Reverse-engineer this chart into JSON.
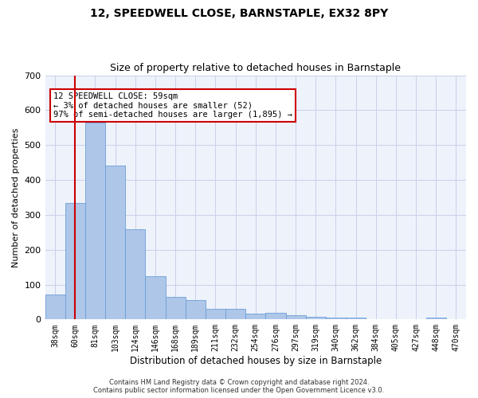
{
  "title": "12, SPEEDWELL CLOSE, BARNSTAPLE, EX32 8PY",
  "subtitle": "Size of property relative to detached houses in Barnstaple",
  "xlabel": "Distribution of detached houses by size in Barnstaple",
  "ylabel": "Number of detached properties",
  "categories": [
    "38sqm",
    "60sqm",
    "81sqm",
    "103sqm",
    "124sqm",
    "146sqm",
    "168sqm",
    "189sqm",
    "211sqm",
    "232sqm",
    "254sqm",
    "276sqm",
    "297sqm",
    "319sqm",
    "340sqm",
    "362sqm",
    "384sqm",
    "405sqm",
    "427sqm",
    "448sqm",
    "470sqm"
  ],
  "values": [
    72,
    333,
    564,
    441,
    258,
    124,
    65,
    55,
    30,
    30,
    17,
    18,
    12,
    7,
    6,
    5,
    0,
    0,
    0,
    5,
    0
  ],
  "bar_color": "#aec6e8",
  "bar_edge_color": "#6a9fd8",
  "vline_x": 1,
  "vline_color": "#cc0000",
  "annotation_text": "12 SPEEDWELL CLOSE: 59sqm\n← 3% of detached houses are smaller (52)\n97% of semi-detached houses are larger (1,895) →",
  "annotation_box_color": "#ffffff",
  "annotation_box_edge": "#cc0000",
  "footer": "Contains HM Land Registry data © Crown copyright and database right 2024.\nContains public sector information licensed under the Open Government Licence v3.0.",
  "ylim": [
    0,
    700
  ],
  "yticks": [
    0,
    100,
    200,
    300,
    400,
    500,
    600,
    700
  ],
  "background_color": "#eef2fb",
  "title_fontsize": 10,
  "subtitle_fontsize": 9,
  "xlabel_fontsize": 8.5,
  "ylabel_fontsize": 8,
  "footer_fontsize": 6,
  "annotation_fontsize": 7.5
}
